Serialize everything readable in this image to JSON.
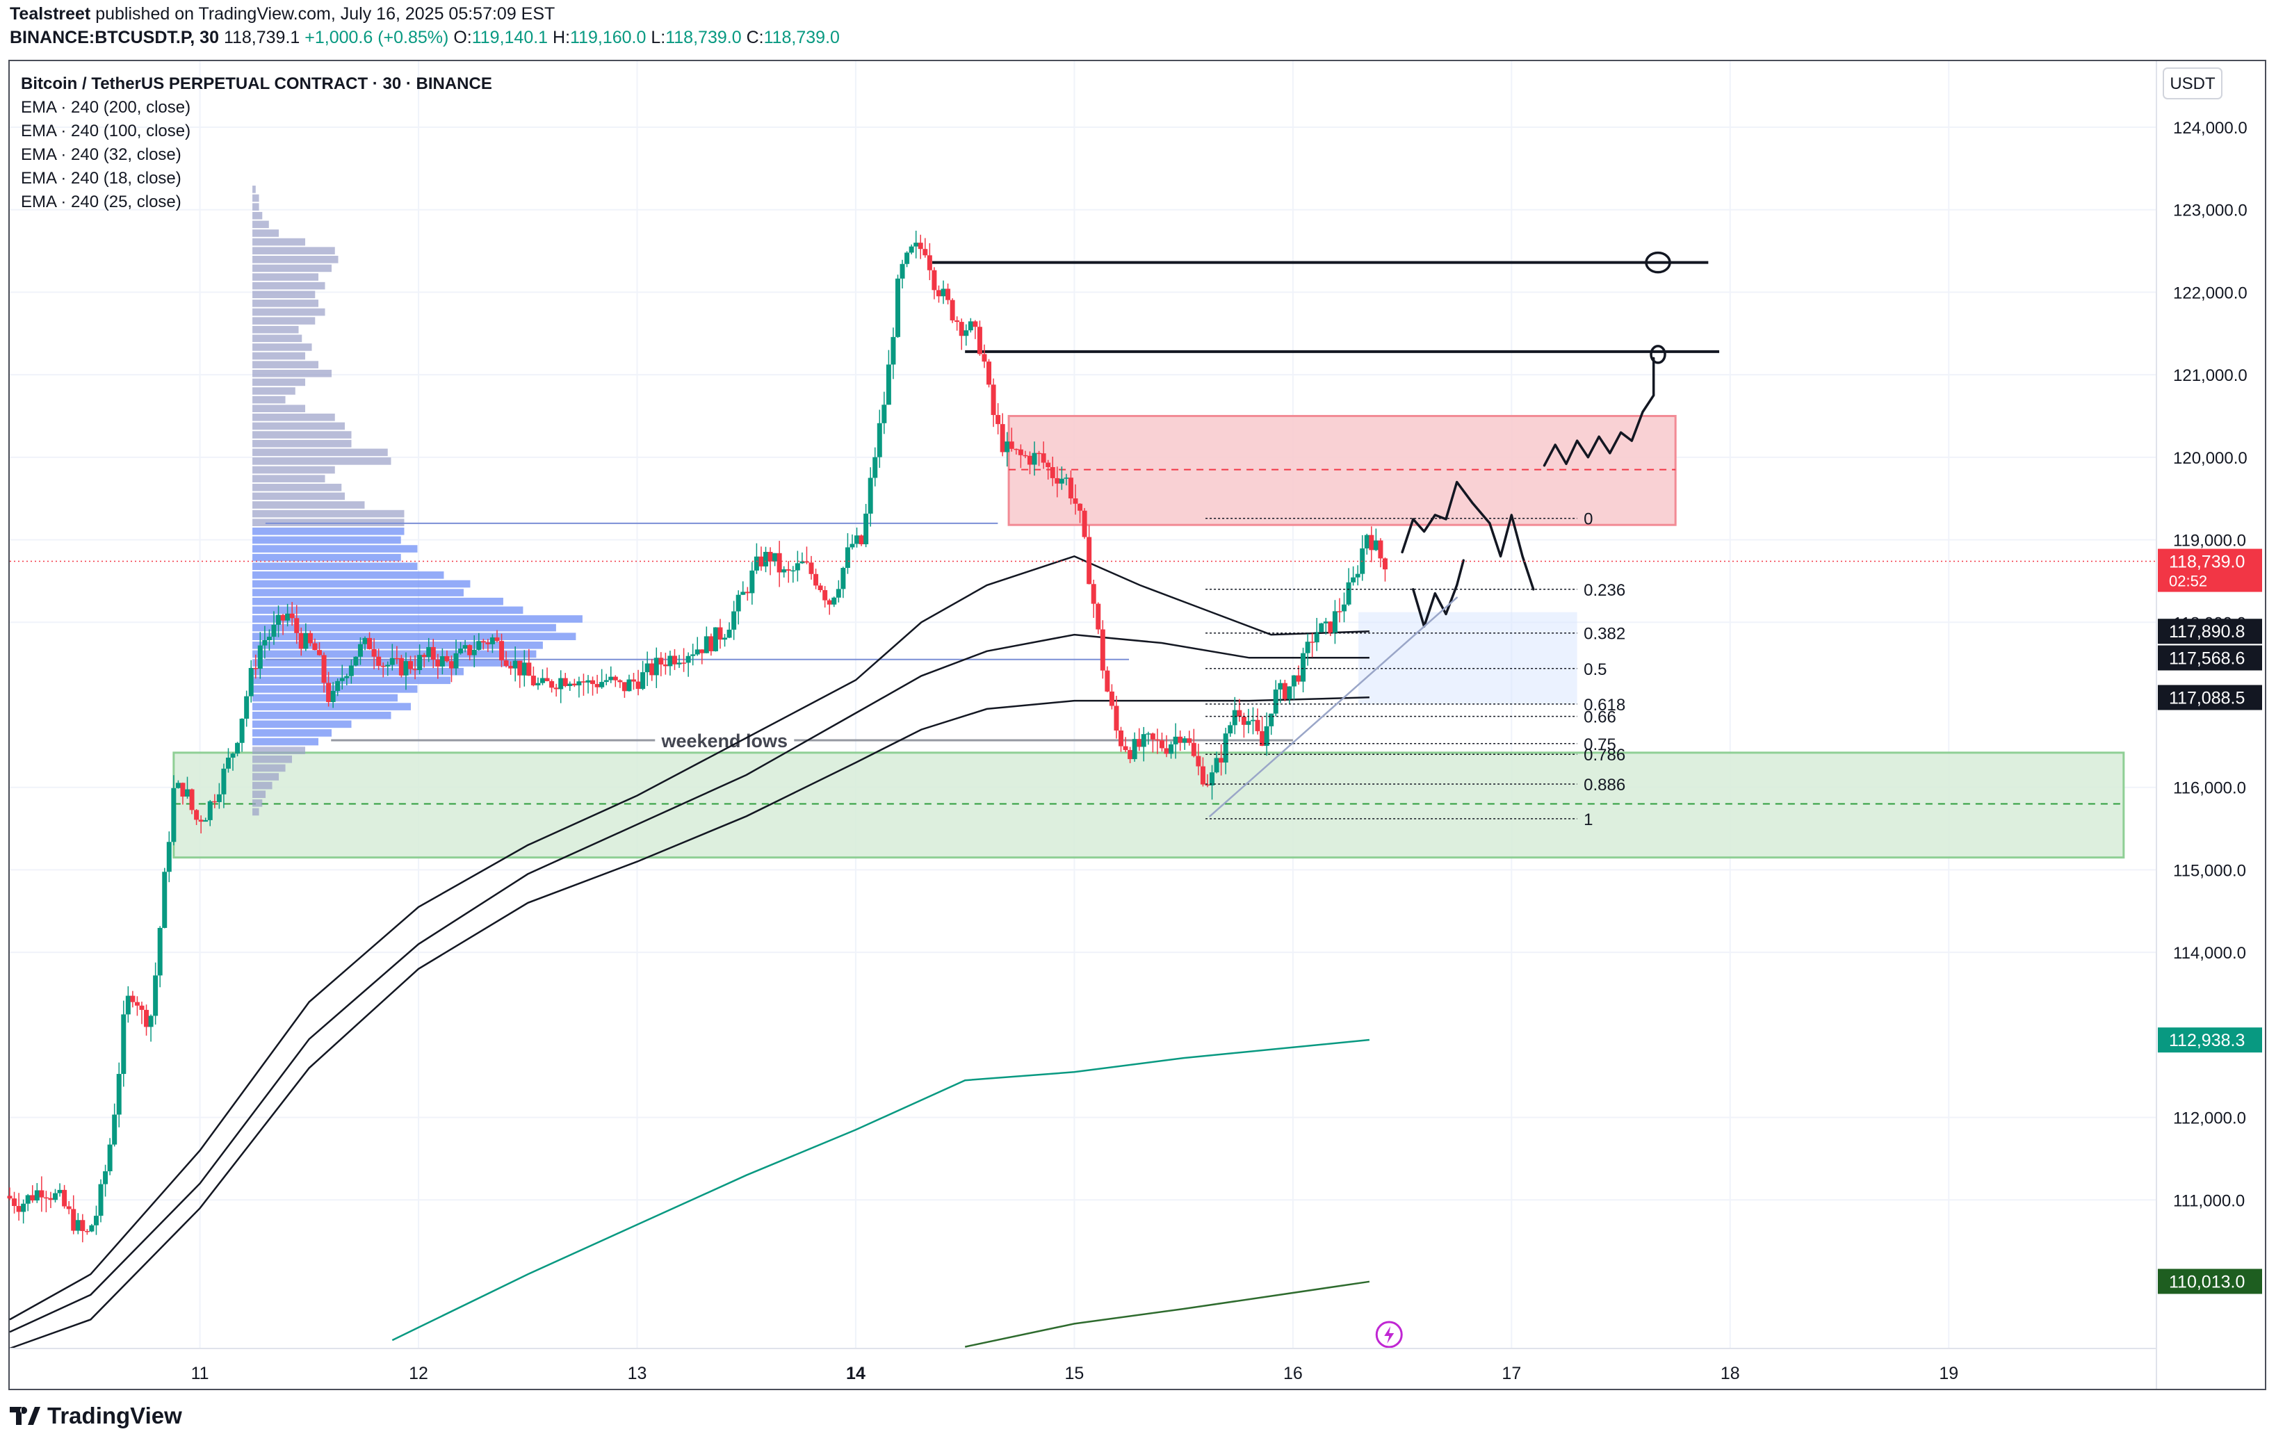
{
  "header": {
    "publisher": "Tealstreet",
    "published_text": "published on TradingView.com, July 16, 2025 05:57:09 EST",
    "symbol": "BINANCE:BTCUSDT.P, 30",
    "last": "118,739.1",
    "change": "+1,000.6 (+0.85%)",
    "o_label": "O:",
    "o_val": "119,140.1",
    "h_label": "H:",
    "h_val": "119,160.0",
    "l_label": "L:",
    "l_val": "118,739.0",
    "c_label": "C:",
    "c_val": "118,739.0"
  },
  "legend": {
    "title": "Bitcoin / TetherUS PERPETUAL CONTRACT · 30 · BINANCE",
    "indicators": [
      "EMA · 240 (200, close)",
      "EMA · 240 (100, close)",
      "EMA · 240 (32, close)",
      "EMA · 240 (18, close)",
      "EMA · 240 (25, close)"
    ]
  },
  "footer": {
    "brand": "TradingView"
  },
  "colors": {
    "up": "#089981",
    "down": "#f23645",
    "supply_zone": "#f8c9cd",
    "demand_zone": "#d7ecd8",
    "profile": "#6f8ff5",
    "profile_grey": "#9aa0c8",
    "ema_green": "#089981",
    "ema_darkgreen": "#2e6b2e"
  },
  "chart_data": {
    "type": "candlestick",
    "currency": "USDT",
    "y_axis": {
      "ticks": [
        "124,000.0",
        "123,000.0",
        "122,000.0",
        "121,000.0",
        "120,000.0",
        "119,000.0",
        "118,000.0",
        "116,000.0",
        "115,000.0",
        "114,000.0",
        "112,000.0",
        "111,000.0"
      ],
      "tick_values": [
        124000,
        123000,
        122000,
        121000,
        120000,
        119000,
        118000,
        116000,
        115000,
        114000,
        112000,
        111000
      ],
      "range": [
        109200,
        124800
      ]
    },
    "x_axis": {
      "labels": [
        "11",
        "12",
        "13",
        "14",
        "15",
        "16",
        "17",
        "18",
        "19"
      ],
      "label_values": [
        11,
        12,
        13,
        14,
        15,
        16,
        17,
        18,
        19
      ],
      "bold_label": "14",
      "range": [
        10.13,
        19.95
      ]
    },
    "price_labels": [
      {
        "text": "118,739.0",
        "sub": "02:52",
        "value": 118739,
        "color": "#f23645"
      },
      {
        "text": "117,890.8",
        "value": 117890.8,
        "color": "#131722"
      },
      {
        "text": "117,568.6",
        "value": 117568.6,
        "color": "#131722"
      },
      {
        "text": "117,088.5",
        "value": 117088.5,
        "color": "#131722"
      },
      {
        "text": "112,938.3",
        "value": 112938.3,
        "color": "#089981"
      },
      {
        "text": "110,013.0",
        "value": 110013,
        "color": "#1e5e20"
      }
    ],
    "ohlc_path": [
      [
        10.13,
        111.05
      ],
      [
        10.2,
        110.95
      ],
      [
        10.3,
        111.15
      ],
      [
        10.38,
        111.0
      ],
      [
        10.45,
        110.7
      ],
      [
        10.5,
        110.55
      ],
      [
        10.55,
        110.85
      ],
      [
        10.6,
        111.5
      ],
      [
        10.64,
        112.3
      ],
      [
        10.68,
        113.35
      ],
      [
        10.72,
        113.55
      ],
      [
        10.76,
        113.2
      ],
      [
        10.8,
        113.25
      ],
      [
        10.86,
        114.9
      ],
      [
        10.9,
        115.95
      ],
      [
        10.95,
        116.0
      ],
      [
        11.0,
        115.6
      ],
      [
        11.05,
        115.7
      ],
      [
        11.12,
        116.1
      ],
      [
        11.18,
        116.5
      ],
      [
        11.25,
        117.3
      ],
      [
        11.3,
        117.75
      ],
      [
        11.36,
        117.9
      ],
      [
        11.42,
        118.1
      ],
      [
        11.48,
        117.8
      ],
      [
        11.55,
        117.65
      ],
      [
        11.62,
        117.0
      ],
      [
        11.68,
        117.4
      ],
      [
        11.74,
        117.65
      ],
      [
        11.8,
        117.75
      ],
      [
        11.86,
        117.5
      ],
      [
        11.93,
        117.45
      ],
      [
        12.0,
        117.5
      ],
      [
        12.08,
        117.6
      ],
      [
        12.15,
        117.5
      ],
      [
        12.22,
        117.6
      ],
      [
        12.3,
        117.75
      ],
      [
        12.36,
        117.8
      ],
      [
        12.42,
        117.6
      ],
      [
        12.5,
        117.4
      ],
      [
        12.58,
        117.2
      ],
      [
        12.65,
        117.3
      ],
      [
        12.72,
        117.35
      ],
      [
        12.8,
        117.25
      ],
      [
        12.88,
        117.3
      ],
      [
        12.95,
        117.2
      ],
      [
        13.05,
        117.35
      ],
      [
        13.15,
        117.55
      ],
      [
        13.25,
        117.65
      ],
      [
        13.35,
        117.75
      ],
      [
        13.42,
        117.9
      ],
      [
        13.5,
        118.3
      ],
      [
        13.58,
        118.75
      ],
      [
        13.63,
        118.8
      ],
      [
        13.7,
        118.55
      ],
      [
        13.78,
        118.7
      ],
      [
        13.85,
        118.5
      ],
      [
        13.9,
        118.25
      ],
      [
        13.95,
        118.55
      ],
      [
        14.0,
        118.95
      ],
      [
        14.05,
        118.95
      ],
      [
        14.1,
        119.9
      ],
      [
        14.16,
        120.8
      ],
      [
        14.22,
        122.2
      ],
      [
        14.28,
        122.5
      ],
      [
        14.34,
        122.55
      ],
      [
        14.38,
        122.15
      ],
      [
        14.44,
        121.85
      ],
      [
        14.5,
        121.6
      ],
      [
        14.55,
        121.55
      ],
      [
        14.6,
        121.3
      ],
      [
        14.64,
        120.6
      ],
      [
        14.7,
        120.1
      ],
      [
        14.78,
        120.0
      ],
      [
        14.86,
        120.0
      ],
      [
        14.92,
        119.8
      ],
      [
        14.98,
        119.75
      ],
      [
        15.04,
        119.35
      ],
      [
        15.1,
        118.4
      ],
      [
        15.16,
        117.3
      ],
      [
        15.22,
        116.6
      ],
      [
        15.28,
        116.45
      ],
      [
        15.36,
        116.55
      ],
      [
        15.44,
        116.5
      ],
      [
        15.52,
        116.7
      ],
      [
        15.58,
        116.25
      ],
      [
        15.64,
        116.05
      ],
      [
        15.7,
        116.45
      ],
      [
        15.76,
        117.0
      ],
      [
        15.82,
        116.8
      ],
      [
        15.88,
        116.5
      ],
      [
        15.93,
        117.1
      ],
      [
        16.0,
        117.2
      ],
      [
        16.06,
        117.45
      ],
      [
        16.12,
        117.9
      ],
      [
        16.18,
        117.9
      ],
      [
        16.24,
        118.2
      ],
      [
        16.3,
        118.5
      ],
      [
        16.36,
        119.1
      ],
      [
        16.43,
        118.74
      ]
    ],
    "ema_lines": [
      {
        "name": "EMA · 240 (25, close)",
        "points": [
          [
            10.13,
            109.55
          ],
          [
            10.5,
            110.1
          ],
          [
            11.0,
            111.6
          ],
          [
            11.5,
            113.4
          ],
          [
            12.0,
            114.55
          ],
          [
            12.5,
            115.3
          ],
          [
            13.0,
            115.9
          ],
          [
            13.5,
            116.6
          ],
          [
            14.0,
            117.3
          ],
          [
            14.3,
            118.0
          ],
          [
            14.6,
            118.45
          ],
          [
            15.0,
            118.8
          ],
          [
            15.3,
            118.45
          ],
          [
            15.6,
            118.15
          ],
          [
            15.9,
            117.85
          ],
          [
            16.35,
            117.89
          ]
        ]
      },
      {
        "name": "EMA · 240 (32, close)",
        "points": [
          [
            10.13,
            109.4
          ],
          [
            10.5,
            109.85
          ],
          [
            11.0,
            111.2
          ],
          [
            11.5,
            112.95
          ],
          [
            12.0,
            114.1
          ],
          [
            12.5,
            114.95
          ],
          [
            13.0,
            115.55
          ],
          [
            13.5,
            116.15
          ],
          [
            14.0,
            116.9
          ],
          [
            14.3,
            117.35
          ],
          [
            14.6,
            117.65
          ],
          [
            15.0,
            117.85
          ],
          [
            15.4,
            117.75
          ],
          [
            15.8,
            117.57
          ],
          [
            16.35,
            117.57
          ]
        ]
      },
      {
        "name": "EMA · 240 (18, close)",
        "points": [
          [
            10.13,
            109.2
          ],
          [
            10.5,
            109.55
          ],
          [
            11.0,
            110.9
          ],
          [
            11.5,
            112.6
          ],
          [
            12.0,
            113.8
          ],
          [
            12.5,
            114.6
          ],
          [
            13.0,
            115.1
          ],
          [
            13.5,
            115.65
          ],
          [
            14.0,
            116.3
          ],
          [
            14.3,
            116.7
          ],
          [
            14.6,
            116.95
          ],
          [
            15.0,
            117.05
          ],
          [
            15.4,
            117.05
          ],
          [
            15.8,
            117.05
          ],
          [
            16.35,
            117.09
          ]
        ]
      },
      {
        "name": "EMA · 240 (100, close)",
        "color": "#089981",
        "points": [
          [
            11.88,
            109.3
          ],
          [
            12.5,
            110.1
          ],
          [
            13.0,
            110.7
          ],
          [
            13.5,
            111.3
          ],
          [
            14.0,
            111.85
          ],
          [
            14.5,
            112.45
          ],
          [
            15.0,
            112.55
          ],
          [
            15.5,
            112.72
          ],
          [
            16.35,
            112.94
          ]
        ]
      },
      {
        "name": "EMA · 240 (200, close)",
        "color": "#2e6b2e",
        "points": [
          [
            14.5,
            109.22
          ],
          [
            15.0,
            109.5
          ],
          [
            15.5,
            109.68
          ],
          [
            16.35,
            110.01
          ]
        ]
      }
    ],
    "fib": {
      "x_start": 15.6,
      "x_end": 16.3,
      "levels": [
        {
          "label": "0",
          "value": 119.26
        },
        {
          "label": "0.236",
          "value": 118.4
        },
        {
          "label": "0.382",
          "value": 117.87
        },
        {
          "label": "0.5",
          "value": 117.44
        },
        {
          "label": "0.618",
          "value": 117.01
        },
        {
          "label": "0.66",
          "value": 116.86
        },
        {
          "label": "0.75",
          "value": 116.53
        },
        {
          "label": "0.786",
          "value": 116.4
        },
        {
          "label": "0.886",
          "value": 116.04
        },
        {
          "label": "1",
          "value": 115.62
        }
      ]
    },
    "zones": [
      {
        "name": "supply",
        "y_top": 120.5,
        "y_bottom": 119.18,
        "x_start": 14.7,
        "x_end": 17.75,
        "mid": 119.85
      },
      {
        "name": "demand",
        "y_top": 116.42,
        "y_bottom": 115.15,
        "x_start": 10.88,
        "x_end": 19.8,
        "mid": 115.8
      }
    ],
    "hlines": [
      {
        "value": 122.36,
        "x_start": 14.35,
        "x_end": 17.9
      },
      {
        "value": 121.28,
        "x_start": 14.5,
        "x_end": 17.95
      },
      {
        "value": 119.2,
        "x_start": 11.3,
        "x_end": 14.65
      },
      {
        "value": 117.55,
        "x_start": 11.3,
        "x_end": 15.25
      }
    ],
    "annotations": [
      {
        "text": "weekend lows",
        "x": 13.4,
        "y": 116.57
      }
    ],
    "volume_profile": {
      "y_top": 123.3,
      "y_bottom": 115.65,
      "x_base": 11.24,
      "x_max": 12.75,
      "blue_from": 119.2,
      "blue_to": 116.45,
      "widths": [
        0.01,
        0.02,
        0.02,
        0.03,
        0.05,
        0.08,
        0.16,
        0.25,
        0.26,
        0.24,
        0.2,
        0.22,
        0.19,
        0.2,
        0.22,
        0.19,
        0.14,
        0.15,
        0.18,
        0.16,
        0.2,
        0.24,
        0.16,
        0.13,
        0.1,
        0.16,
        0.25,
        0.28,
        0.3,
        0.3,
        0.41,
        0.42,
        0.25,
        0.22,
        0.27,
        0.28,
        0.34,
        0.46,
        0.46,
        0.46,
        0.45,
        0.5,
        0.45,
        0.5,
        0.58,
        0.66,
        0.64,
        0.76,
        0.82,
        1.0,
        0.92,
        0.98,
        0.88,
        0.86,
        0.82,
        0.64,
        0.6,
        0.5,
        0.44,
        0.48,
        0.42,
        0.3,
        0.24,
        0.2,
        0.16,
        0.12,
        0.1,
        0.08,
        0.06,
        0.04,
        0.03,
        0.02
      ]
    },
    "drawings": [
      {
        "name": "forecast-squiggle-upper",
        "points": [
          [
            17.15,
            119.9
          ],
          [
            17.2,
            120.15
          ],
          [
            17.25,
            119.92
          ],
          [
            17.3,
            120.2
          ],
          [
            17.35,
            120.0
          ],
          [
            17.4,
            120.25
          ],
          [
            17.45,
            120.05
          ],
          [
            17.5,
            120.3
          ],
          [
            17.55,
            120.2
          ],
          [
            17.6,
            120.55
          ],
          [
            17.65,
            120.75
          ],
          [
            17.65,
            121.2
          ]
        ]
      },
      {
        "name": "forecast-squiggle-lower",
        "points": [
          [
            16.5,
            118.85
          ],
          [
            16.55,
            119.25
          ],
          [
            16.6,
            119.1
          ],
          [
            16.65,
            119.3
          ],
          [
            16.7,
            119.25
          ],
          [
            16.75,
            119.7
          ],
          [
            16.82,
            119.45
          ],
          [
            16.9,
            119.2
          ],
          [
            16.95,
            118.8
          ],
          [
            17.0,
            119.3
          ],
          [
            17.05,
            118.8
          ],
          [
            17.1,
            118.4
          ]
        ]
      },
      {
        "name": "forecast-dip",
        "points": [
          [
            16.55,
            118.4
          ],
          [
            16.6,
            117.95
          ],
          [
            16.65,
            118.35
          ],
          [
            16.7,
            118.1
          ],
          [
            16.75,
            118.45
          ],
          [
            16.78,
            118.75
          ]
        ]
      },
      {
        "name": "trendline",
        "points": [
          [
            15.62,
            115.65
          ],
          [
            16.75,
            118.3
          ]
        ]
      }
    ]
  }
}
